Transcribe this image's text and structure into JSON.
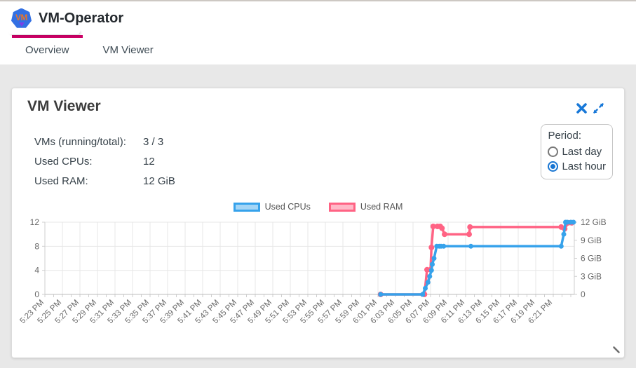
{
  "header": {
    "app_title": "VM-Operator",
    "logo_text": "VM"
  },
  "tabs": {
    "items": [
      {
        "label": "Overview",
        "active": true
      },
      {
        "label": "VM Viewer",
        "active": false
      }
    ],
    "active_indicator_color": "#cc0066"
  },
  "panel": {
    "title": "VM Viewer",
    "stats": [
      {
        "label": "VMs (running/total):",
        "value": "3 / 3"
      },
      {
        "label": "Used CPUs:",
        "value": "12"
      },
      {
        "label": "Used RAM:",
        "value": "12 GiB"
      }
    ],
    "period": {
      "label": "Period:",
      "options": [
        {
          "label": "Last day",
          "selected": false
        },
        {
          "label": "Last hour",
          "selected": true
        }
      ]
    }
  },
  "colors": {
    "accent_tab_indicator": "#cc0066",
    "icon_blue": "#1878d8",
    "radio_selected": "#1976d2",
    "cpu_line": "#36A2EB",
    "ram_line": "#FF6384",
    "grid": "#e7e7e7",
    "axis_text": "#686868"
  },
  "chart_data": {
    "type": "line",
    "title": "",
    "legend_position": "top",
    "grid": true,
    "x_axis": {
      "unit": "time",
      "start_label": "5:23 PM",
      "end_label": "6:21 PM",
      "label_interval_minutes": 2,
      "minor_tick_minutes": 1,
      "range_minutes": [
        0,
        60.4
      ],
      "labels": [
        "5:23 PM",
        "5:25 PM",
        "5:27 PM",
        "5:29 PM",
        "5:31 PM",
        "5:33 PM",
        "5:35 PM",
        "5:37 PM",
        "5:39 PM",
        "5:41 PM",
        "5:43 PM",
        "5:45 PM",
        "5:47 PM",
        "5:49 PM",
        "5:51 PM",
        "5:53 PM",
        "5:55 PM",
        "5:57 PM",
        "5:59 PM",
        "6:01 PM",
        "6:03 PM",
        "6:05 PM",
        "6:07 PM",
        "6:09 PM",
        "6:11 PM",
        "6:13 PM",
        "6:15 PM",
        "6:17 PM",
        "6:19 PM",
        "6:21 PM"
      ]
    },
    "y_left": {
      "series": "Used CPUs",
      "ticks": [
        0,
        4,
        8,
        12
      ],
      "min": 0,
      "max": 12
    },
    "y_right": {
      "series": "Used RAM",
      "min": 0,
      "max": 12,
      "ticks": [
        {
          "v": 0,
          "label": "0"
        },
        {
          "v": 3,
          "label": "3 GiB"
        },
        {
          "v": 6,
          "label": "6 GiB"
        },
        {
          "v": 9,
          "label": "9 GiB"
        },
        {
          "v": 12,
          "label": "12 GiB"
        }
      ]
    },
    "series": [
      {
        "name": "Used RAM",
        "axis": "right",
        "color": "#FF6384",
        "fill_color": "rgba(255,99,132,0.45)",
        "point_radius": 4,
        "points_format": "[minutes_after_5:23PM, GiB]",
        "points": [
          [
            38.3,
            0
          ],
          [
            43.3,
            0
          ],
          [
            43.6,
            4.1
          ],
          [
            44.0,
            4.1
          ],
          [
            44.1,
            7.8
          ],
          [
            44.3,
            11.3
          ],
          [
            44.8,
            11.3
          ],
          [
            45.1,
            11.3
          ],
          [
            45.3,
            11.0
          ],
          [
            45.6,
            10.0
          ],
          [
            48.4,
            10.0
          ],
          [
            48.5,
            11.2
          ],
          [
            58.9,
            11.2
          ],
          [
            59.3,
            10.9
          ],
          [
            59.7,
            11.9
          ],
          [
            60.1,
            11.9
          ]
        ]
      },
      {
        "name": "Used CPUs",
        "axis": "left",
        "color": "#36A2EB",
        "fill_color": "rgba(54,162,235,0.45)",
        "point_radius": 3.5,
        "points_format": "[minutes_after_5:23PM, cpus]",
        "points": [
          [
            38.3,
            0
          ],
          [
            43.1,
            0
          ],
          [
            43.4,
            1
          ],
          [
            43.7,
            2
          ],
          [
            43.9,
            3
          ],
          [
            44.1,
            4
          ],
          [
            44.2,
            5
          ],
          [
            44.4,
            6
          ],
          [
            44.7,
            8
          ],
          [
            45.0,
            8
          ],
          [
            45.2,
            8
          ],
          [
            45.5,
            8
          ],
          [
            48.6,
            8
          ],
          [
            58.9,
            8
          ],
          [
            59.2,
            10
          ],
          [
            59.4,
            12
          ],
          [
            59.6,
            12
          ],
          [
            60.0,
            12
          ],
          [
            60.3,
            12
          ]
        ]
      }
    ],
    "legend_order": [
      "Used CPUs",
      "Used RAM"
    ]
  }
}
